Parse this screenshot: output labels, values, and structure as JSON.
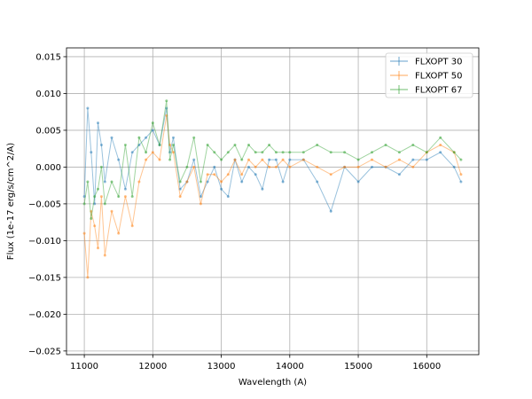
{
  "chart_data": {
    "type": "line",
    "title": "",
    "xlabel": "Wavelength (A)",
    "ylabel": "Flux (1e-17 erg/s/cm^2/A)",
    "xlim": [
      10740,
      16760
    ],
    "ylim": [
      -0.0255,
      0.0162
    ],
    "xticks": [
      11000,
      12000,
      13000,
      14000,
      15000,
      16000
    ],
    "xtick_labels": [
      "11000",
      "12000",
      "13000",
      "14000",
      "15000",
      "16000"
    ],
    "yticks": [
      -0.025,
      -0.02,
      -0.015,
      -0.01,
      -0.005,
      0.0,
      0.005,
      0.01,
      0.015
    ],
    "ytick_labels": [
      "−0.025",
      "−0.020",
      "−0.015",
      "−0.010",
      "−0.005",
      "0.000",
      "0.005",
      "0.010",
      "0.015"
    ],
    "grid": true,
    "legend_position": "top-right",
    "series": [
      {
        "name": "FLXOPT 30",
        "color": "#1f77b4",
        "x": [
          11000,
          11050,
          11100,
          11150,
          11200,
          11250,
          11300,
          11400,
          11500,
          11600,
          11700,
          11800,
          11900,
          12000,
          12100,
          12200,
          12250,
          12300,
          12400,
          12500,
          12600,
          12700,
          12800,
          12900,
          13000,
          13100,
          13200,
          13300,
          13400,
          13500,
          13600,
          13700,
          13800,
          13900,
          14000,
          14200,
          14400,
          14600,
          14800,
          15000,
          15200,
          15400,
          15600,
          15800,
          16000,
          16200,
          16400,
          16500
        ],
        "y": [
          -0.004,
          0.008,
          0.002,
          -0.005,
          0.006,
          0.003,
          -0.002,
          0.004,
          0.001,
          -0.003,
          0.002,
          0.003,
          0.004,
          0.005,
          0.003,
          0.008,
          0.002,
          0.004,
          -0.003,
          -0.002,
          0.001,
          -0.004,
          -0.002,
          0.0,
          -0.003,
          -0.004,
          0.001,
          -0.002,
          0.0,
          -0.001,
          -0.003,
          0.001,
          0.001,
          -0.002,
          0.001,
          0.001,
          -0.002,
          -0.006,
          0.0,
          -0.002,
          0.0,
          0.0,
          -0.001,
          0.001,
          0.001,
          0.002,
          0.0,
          -0.002
        ]
      },
      {
        "name": "FLXOPT 50",
        "color": "#ff7f0e",
        "x": [
          11000,
          11050,
          11100,
          11150,
          11200,
          11250,
          11300,
          11400,
          11500,
          11600,
          11700,
          11800,
          11900,
          12000,
          12100,
          12200,
          12250,
          12300,
          12400,
          12500,
          12600,
          12700,
          12800,
          12900,
          13000,
          13100,
          13200,
          13300,
          13400,
          13500,
          13600,
          13700,
          13800,
          13900,
          14000,
          14200,
          14400,
          14600,
          14800,
          15000,
          15200,
          15400,
          15600,
          15800,
          16000,
          16200,
          16400,
          16500
        ],
        "y": [
          -0.009,
          -0.015,
          -0.006,
          -0.008,
          -0.011,
          -0.004,
          -0.012,
          -0.006,
          -0.009,
          -0.004,
          -0.008,
          -0.002,
          0.001,
          0.002,
          0.001,
          0.007,
          0.003,
          0.002,
          -0.004,
          -0.002,
          0.0,
          -0.005,
          -0.001,
          -0.001,
          -0.002,
          -0.001,
          0.001,
          -0.001,
          0.001,
          0.0,
          0.001,
          0.0,
          0.0,
          0.001,
          0.0,
          0.001,
          0.0,
          -0.001,
          0.0,
          0.0,
          0.001,
          0.0,
          0.001,
          0.0,
          0.002,
          0.003,
          0.002,
          -0.001
        ]
      },
      {
        "name": "FLXOPT 67",
        "color": "#2ca02c",
        "x": [
          11000,
          11050,
          11100,
          11150,
          11200,
          11250,
          11300,
          11400,
          11500,
          11600,
          11700,
          11800,
          11900,
          12000,
          12100,
          12200,
          12250,
          12300,
          12400,
          12500,
          12600,
          12700,
          12800,
          12900,
          13000,
          13100,
          13200,
          13300,
          13400,
          13500,
          13600,
          13700,
          13800,
          13900,
          14000,
          14200,
          14400,
          14600,
          14800,
          15000,
          15200,
          15400,
          15600,
          15800,
          16000,
          16200,
          16400,
          16500
        ],
        "y": [
          -0.005,
          -0.002,
          -0.007,
          -0.004,
          -0.003,
          0.0,
          -0.005,
          -0.002,
          -0.004,
          0.003,
          -0.004,
          0.004,
          0.002,
          0.006,
          0.003,
          0.009,
          0.001,
          0.003,
          -0.002,
          0.0,
          0.004,
          -0.002,
          0.003,
          0.002,
          0.001,
          0.002,
          0.003,
          0.001,
          0.003,
          0.002,
          0.002,
          0.003,
          0.002,
          0.002,
          0.002,
          0.002,
          0.003,
          0.002,
          0.002,
          0.001,
          0.002,
          0.003,
          0.002,
          0.003,
          0.002,
          0.004,
          0.002,
          0.001
        ]
      }
    ]
  }
}
